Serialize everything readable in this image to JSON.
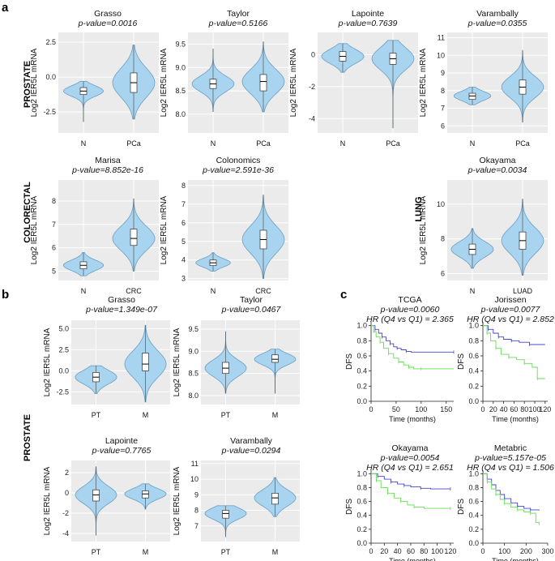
{
  "panel_labels": [
    "a",
    "b",
    "c"
  ],
  "group_labels": {
    "prostate": "PROSTATE",
    "colorectal": "COLORECTAL",
    "lung": "LUNG",
    "prostate_b": "PROSTATE"
  },
  "colors": {
    "violin_fill": "#a8d4f0",
    "violin_stroke": "#6c9fc2",
    "plot_bg": "#ebebeb",
    "km_high": "#66dd55",
    "km_low": "#4444cc",
    "km_grey": "#999999"
  },
  "chart_data": [
    {
      "id": "a1",
      "type": "violin",
      "title": "Grasso",
      "subtitle": "p-value=0.0016",
      "ylabel": "Log2 IER5L mRNA",
      "categories": [
        "N",
        "PCa"
      ],
      "ylim": [
        -4,
        3.2
      ],
      "yticks": [
        "-2.5",
        "0.0",
        "2.5"
      ],
      "ytick_values": [
        -2.5,
        0,
        2.5
      ],
      "groups": [
        {
          "min": -3.2,
          "q1": -1.25,
          "median": -1.0,
          "q3": -0.75,
          "max": -0.3
        },
        {
          "min": -3.0,
          "q1": -1.1,
          "median": -0.4,
          "q3": 0.3,
          "max": 2.3
        }
      ]
    },
    {
      "id": "a2",
      "type": "violin",
      "title": "Taylor",
      "subtitle": "p-value=0.5166",
      "ylabel": "Log2 IER5L mRNA",
      "categories": [
        "N",
        "PCa"
      ],
      "ylim": [
        7.6,
        9.75
      ],
      "yticks": [
        "8.0",
        "8.5",
        "9.0",
        "9.5"
      ],
      "ytick_values": [
        8.0,
        8.5,
        9.0,
        9.5
      ],
      "groups": [
        {
          "min": 8.05,
          "q1": 8.55,
          "median": 8.65,
          "q3": 8.75,
          "max": 9.4
        },
        {
          "min": 8.05,
          "q1": 8.5,
          "median": 8.7,
          "q3": 8.85,
          "max": 9.55
        }
      ]
    },
    {
      "id": "a3",
      "type": "violin",
      "title": "Lapointe",
      "subtitle": "p-value=0.7639",
      "ylabel": "Log2 IER5L mRNA",
      "categories": [
        "N",
        "PCa"
      ],
      "ylim": [
        -4.9,
        1.4
      ],
      "yticks": [
        "-4",
        "-2",
        "0"
      ],
      "ytick_values": [
        -4,
        -2,
        0
      ],
      "groups": [
        {
          "min": -1.1,
          "q1": -0.4,
          "median": -0.1,
          "q3": 0.2,
          "max": 0.7
        },
        {
          "min": -4.6,
          "q1": -0.6,
          "median": -0.25,
          "q3": 0.1,
          "max": 0.9
        }
      ]
    },
    {
      "id": "a4",
      "type": "violin",
      "title": "Varambally",
      "subtitle": "p-value=0.0355",
      "ylabel": "Log2 IER5L mRNA",
      "categories": [
        "N",
        "PCa"
      ],
      "ylim": [
        5.6,
        11.3
      ],
      "yticks": [
        "6",
        "7",
        "8",
        "9",
        "10",
        "11"
      ],
      "ytick_values": [
        6,
        7,
        8,
        9,
        10,
        11
      ],
      "groups": [
        {
          "min": 7.2,
          "q1": 7.5,
          "median": 7.7,
          "q3": 7.85,
          "max": 8.2
        },
        {
          "min": 6.2,
          "q1": 7.8,
          "median": 8.2,
          "q3": 8.6,
          "max": 10.3
        }
      ]
    },
    {
      "id": "a5",
      "type": "violin",
      "title": "Marisa",
      "subtitle": "p-value=8.852e-16",
      "ylabel": "Log2 IER5L mRNA",
      "categories": [
        "N",
        "CRC"
      ],
      "ylim": [
        4.6,
        8.9
      ],
      "yticks": [
        "5",
        "6",
        "7",
        "8"
      ],
      "ytick_values": [
        5,
        6,
        7,
        8
      ],
      "groups": [
        {
          "min": 4.8,
          "q1": 5.1,
          "median": 5.25,
          "q3": 5.4,
          "max": 5.8
        },
        {
          "min": 5.0,
          "q1": 6.1,
          "median": 6.4,
          "q3": 6.8,
          "max": 8.1
        }
      ]
    },
    {
      "id": "a6",
      "type": "violin",
      "title": "Colonomics",
      "subtitle": "p-value=2.591e-36",
      "ylabel": "Log2 IER5L mRNA",
      "categories": [
        "N",
        "CRC"
      ],
      "ylim": [
        2.9,
        8.3
      ],
      "yticks": [
        "3",
        "4",
        "5",
        "6",
        "7",
        "8"
      ],
      "ytick_values": [
        3,
        4,
        5,
        6,
        7,
        8
      ],
      "groups": [
        {
          "min": 3.4,
          "q1": 3.7,
          "median": 3.85,
          "q3": 4.0,
          "max": 4.4
        },
        {
          "min": 3.0,
          "q1": 4.6,
          "median": 5.1,
          "q3": 5.6,
          "max": 7.5
        }
      ]
    },
    {
      "id": "a7",
      "type": "violin",
      "title": "Okayama",
      "subtitle": "p-value=0.0034",
      "ylabel": "Log2 IER5L mRNA",
      "categories": [
        "N",
        "LUAD"
      ],
      "ylim": [
        5.6,
        11.4
      ],
      "yticks": [
        "6",
        "8",
        "10"
      ],
      "ytick_values": [
        6,
        8,
        10
      ],
      "groups": [
        {
          "min": 6.3,
          "q1": 7.1,
          "median": 7.4,
          "q3": 7.7,
          "max": 8.6
        },
        {
          "min": 5.9,
          "q1": 7.4,
          "median": 7.9,
          "q3": 8.4,
          "max": 10.3
        }
      ]
    },
    {
      "id": "b1",
      "type": "violin",
      "title": "Grasso",
      "subtitle": "p-value=1.349e-07",
      "ylabel": "Log2 IER5L mRNA",
      "categories": [
        "PT",
        "M"
      ],
      "ylim": [
        -4,
        6
      ],
      "yticks": [
        "-2.5",
        "0.0",
        "2.5",
        "5.0"
      ],
      "ytick_values": [
        -2.5,
        0,
        2.5,
        5
      ],
      "groups": [
        {
          "min": -2.7,
          "q1": -1.3,
          "median": -0.75,
          "q3": -0.2,
          "max": 0.6
        },
        {
          "min": -3.7,
          "q1": 0.0,
          "median": 0.8,
          "q3": 2.1,
          "max": 5.4
        }
      ]
    },
    {
      "id": "b2",
      "type": "violin",
      "title": "Taylor",
      "subtitle": "p-value=0.0467",
      "ylabel": "Log2 IER5L mRNA",
      "categories": [
        "PT",
        "M"
      ],
      "ylim": [
        7.8,
        9.7
      ],
      "yticks": [
        "8.0",
        "8.5",
        "9.0",
        "9.5"
      ],
      "ytick_values": [
        8.0,
        8.5,
        9.0,
        9.5
      ],
      "groups": [
        {
          "min": 8.05,
          "q1": 8.5,
          "median": 8.62,
          "q3": 8.75,
          "max": 9.45
        },
        {
          "min": 8.05,
          "q1": 8.75,
          "median": 8.82,
          "q3": 8.92,
          "max": 9.05
        }
      ]
    },
    {
      "id": "b3",
      "type": "violin",
      "title": "Lapointe",
      "subtitle": "p-value=0.7765",
      "ylabel": "Log2 IER5L mRNA",
      "categories": [
        "PT",
        "M"
      ],
      "ylim": [
        -4.8,
        3.2
      ],
      "yticks": [
        "-4",
        "-2",
        "0",
        "2"
      ],
      "ytick_values": [
        -4,
        -2,
        0,
        2
      ],
      "groups": [
        {
          "min": -4.2,
          "q1": -0.8,
          "median": -0.2,
          "q3": 0.3,
          "max": 2.6
        },
        {
          "min": -1.6,
          "q1": -0.5,
          "median": -0.1,
          "q3": 0.2,
          "max": 0.9
        }
      ]
    },
    {
      "id": "b4",
      "type": "violin",
      "title": "Varambally",
      "subtitle": "p-value=0.0294",
      "ylabel": "Log2 IER5L mRNA",
      "categories": [
        "PT",
        "M"
      ],
      "ylim": [
        6,
        11.2
      ],
      "yticks": [
        "7",
        "8",
        "9",
        "10",
        "11"
      ],
      "ytick_values": [
        7,
        8,
        9,
        10,
        11
      ],
      "groups": [
        {
          "min": 6.3,
          "q1": 7.5,
          "median": 7.8,
          "q3": 8.0,
          "max": 8.3
        },
        {
          "min": 7.6,
          "q1": 8.4,
          "median": 8.8,
          "q3": 9.1,
          "max": 10.1
        }
      ]
    },
    {
      "id": "c1",
      "type": "line",
      "title": "TCGA",
      "subtitle": "p-value=0.0060",
      "subtitle2": "HR (Q4 vs Q1) = 2.365",
      "ylabel": "DFS",
      "xlabel": "Time (months)",
      "xlim": [
        0,
        165
      ],
      "ylim": [
        0,
        1.05
      ],
      "xticks": [
        0,
        50,
        100,
        150
      ],
      "yticks": [
        0.0,
        0.2,
        0.4,
        0.6,
        0.8,
        1.0
      ],
      "series": [
        {
          "color": "#4444cc",
          "x": [
            0,
            8,
            15,
            22,
            30,
            38,
            45,
            52,
            60,
            70,
            80,
            165
          ],
          "y": [
            1.0,
            0.95,
            0.9,
            0.85,
            0.8,
            0.76,
            0.72,
            0.7,
            0.68,
            0.66,
            0.65,
            0.65
          ]
        },
        {
          "color": "#66dd55",
          "x": [
            0,
            5,
            10,
            18,
            25,
            35,
            45,
            55,
            65,
            75,
            85,
            100,
            165
          ],
          "y": [
            1.0,
            0.92,
            0.85,
            0.78,
            0.7,
            0.63,
            0.57,
            0.52,
            0.48,
            0.45,
            0.43,
            0.43,
            0.43
          ]
        }
      ]
    },
    {
      "id": "c2",
      "type": "line",
      "title": "Jorissen",
      "subtitle": "p-value=0.0077",
      "subtitle2": "HR (Q4 vs Q1) = 2.852",
      "ylabel": "DFS",
      "xlabel": "Time (months)",
      "xlim": [
        0,
        125
      ],
      "ylim": [
        0,
        1.05
      ],
      "xticks": [
        0,
        20,
        40,
        60,
        80,
        100,
        120
      ],
      "yticks": [
        0.0,
        0.2,
        0.4,
        0.6,
        0.8,
        1.0
      ],
      "series": [
        {
          "color": "#4444cc",
          "x": [
            0,
            10,
            20,
            30,
            40,
            55,
            70,
            90,
            120
          ],
          "y": [
            1.0,
            0.95,
            0.9,
            0.85,
            0.82,
            0.8,
            0.78,
            0.75,
            0.75
          ]
        },
        {
          "color": "#66dd55",
          "x": [
            0,
            8,
            15,
            25,
            35,
            50,
            65,
            80,
            95,
            105,
            120
          ],
          "y": [
            1.0,
            0.9,
            0.8,
            0.7,
            0.62,
            0.58,
            0.55,
            0.5,
            0.45,
            0.3,
            0.3
          ]
        }
      ]
    },
    {
      "id": "c3",
      "type": "line",
      "title": "Okayama",
      "subtitle": "p-value=0.0054",
      "subtitle2": "HR (Q4 vs Q1) = 2.651",
      "ylabel": "DFS",
      "xlabel": "Time (months)",
      "xlim": [
        0,
        125
      ],
      "ylim": [
        0,
        1.05
      ],
      "xticks": [
        0,
        20,
        40,
        60,
        80,
        100,
        120
      ],
      "yticks": [
        0.0,
        0.2,
        0.4,
        0.6,
        0.8,
        1.0
      ],
      "series": [
        {
          "color": "#4444cc",
          "x": [
            0,
            10,
            20,
            30,
            40,
            50,
            60,
            75,
            90,
            120
          ],
          "y": [
            1.0,
            0.96,
            0.92,
            0.88,
            0.85,
            0.83,
            0.81,
            0.79,
            0.78,
            0.78
          ]
        },
        {
          "color": "#66dd55",
          "x": [
            0,
            8,
            15,
            25,
            35,
            45,
            55,
            65,
            80,
            120
          ],
          "y": [
            1.0,
            0.9,
            0.8,
            0.72,
            0.65,
            0.6,
            0.55,
            0.52,
            0.5,
            0.5
          ]
        }
      ]
    },
    {
      "id": "c4",
      "type": "line",
      "title": "Metabric",
      "subtitle": "p-value=5.157e-05",
      "subtitle2": "HR (Q4 vs Q1) = 1.506",
      "ylabel": "DFS",
      "xlabel": "Time (months)",
      "xlim": [
        0,
        300
      ],
      "ylim": [
        0,
        1.05
      ],
      "xticks": [
        0,
        100,
        200,
        300
      ],
      "yticks": [
        0.0,
        0.2,
        0.4,
        0.6,
        0.8,
        1.0
      ],
      "series": [
        {
          "color": "#4444cc",
          "x": [
            0,
            20,
            40,
            60,
            80,
            100,
            130,
            160,
            190,
            220,
            260
          ],
          "y": [
            1.0,
            0.92,
            0.84,
            0.76,
            0.7,
            0.64,
            0.58,
            0.53,
            0.5,
            0.48,
            0.47
          ]
        },
        {
          "color": "#66dd55",
          "x": [
            0,
            20,
            40,
            60,
            80,
            100,
            130,
            160,
            190,
            220,
            245,
            260
          ],
          "y": [
            1.0,
            0.88,
            0.78,
            0.7,
            0.63,
            0.57,
            0.52,
            0.48,
            0.45,
            0.43,
            0.3,
            0.28
          ]
        }
      ]
    }
  ]
}
